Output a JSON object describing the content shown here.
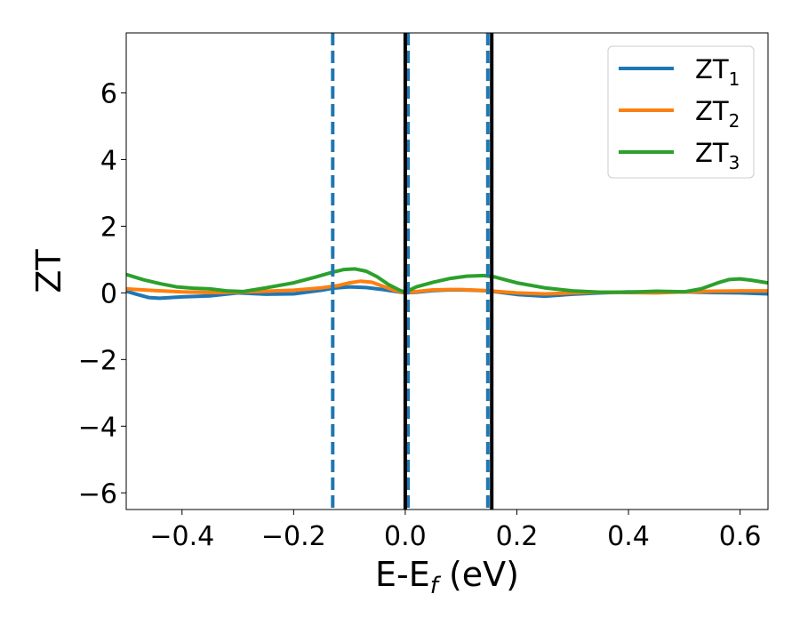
{
  "chart_data": {
    "type": "line",
    "xlabel": "E-E",
    "xlabel_sub": "f",
    "xlabel_unit": " (eV)",
    "ylabel": "ZT",
    "xlim": [
      -0.5,
      0.65
    ],
    "ylim": [
      -6.5,
      7.8
    ],
    "xticks": [
      -0.4,
      -0.2,
      0.0,
      0.2,
      0.4,
      0.6
    ],
    "xtick_labels": [
      "−0.4",
      "−0.2",
      "0.0",
      "0.2",
      "0.4",
      "0.6"
    ],
    "yticks": [
      -6,
      -4,
      -2,
      0,
      2,
      4,
      6
    ],
    "ytick_labels": [
      "−6",
      "−4",
      "−2",
      "0",
      "2",
      "4",
      "6"
    ],
    "grid": false,
    "legend_position": "top-right",
    "series": [
      {
        "name": "ZT",
        "name_sub": "1",
        "color": "#1f77b4",
        "x": [
          -0.5,
          -0.48,
          -0.46,
          -0.44,
          -0.42,
          -0.4,
          -0.35,
          -0.3,
          -0.25,
          -0.2,
          -0.15,
          -0.13,
          -0.1,
          -0.07,
          -0.04,
          -0.02,
          0.0,
          0.02,
          0.05,
          0.08,
          0.1,
          0.12,
          0.15,
          0.2,
          0.25,
          0.3,
          0.35,
          0.4,
          0.45,
          0.5,
          0.55,
          0.6,
          0.65
        ],
        "y": [
          0.05,
          -0.05,
          -0.14,
          -0.16,
          -0.14,
          -0.12,
          -0.09,
          0.0,
          -0.04,
          -0.03,
          0.08,
          0.14,
          0.18,
          0.16,
          0.1,
          0.05,
          0.0,
          0.02,
          0.07,
          0.09,
          0.09,
          0.08,
          0.06,
          -0.05,
          -0.1,
          -0.04,
          0.0,
          0.03,
          0.02,
          0.03,
          0.01,
          0.0,
          -0.03
        ]
      },
      {
        "name": "ZT",
        "name_sub": "2",
        "color": "#ff7f0e",
        "x": [
          -0.5,
          -0.45,
          -0.4,
          -0.35,
          -0.3,
          -0.25,
          -0.2,
          -0.15,
          -0.12,
          -0.1,
          -0.08,
          -0.06,
          -0.04,
          -0.02,
          0.0,
          0.02,
          0.05,
          0.08,
          0.1,
          0.13,
          0.15,
          0.2,
          0.25,
          0.3,
          0.35,
          0.4,
          0.45,
          0.5,
          0.55,
          0.6,
          0.65
        ],
        "y": [
          0.12,
          0.07,
          0.03,
          0.01,
          0.02,
          0.05,
          0.08,
          0.15,
          0.22,
          0.3,
          0.35,
          0.32,
          0.2,
          0.08,
          0.0,
          0.04,
          0.09,
          0.1,
          0.1,
          0.08,
          0.06,
          0.0,
          -0.03,
          0.0,
          0.02,
          0.01,
          0.0,
          0.03,
          0.05,
          0.06,
          0.06
        ]
      },
      {
        "name": "ZT",
        "name_sub": "3",
        "color": "#2ca02c",
        "x": [
          -0.5,
          -0.47,
          -0.44,
          -0.41,
          -0.38,
          -0.35,
          -0.32,
          -0.29,
          -0.25,
          -0.2,
          -0.16,
          -0.13,
          -0.11,
          -0.09,
          -0.07,
          -0.05,
          -0.03,
          -0.01,
          0.0,
          0.02,
          0.05,
          0.08,
          0.11,
          0.14,
          0.16,
          0.2,
          0.25,
          0.3,
          0.35,
          0.4,
          0.45,
          0.5,
          0.53,
          0.56,
          0.58,
          0.6,
          0.62,
          0.65
        ],
        "y": [
          0.55,
          0.4,
          0.28,
          0.18,
          0.14,
          0.12,
          0.06,
          0.04,
          0.15,
          0.3,
          0.48,
          0.62,
          0.7,
          0.72,
          0.65,
          0.48,
          0.25,
          0.08,
          0.02,
          0.18,
          0.32,
          0.43,
          0.5,
          0.52,
          0.48,
          0.3,
          0.15,
          0.06,
          0.02,
          0.02,
          0.05,
          0.03,
          0.12,
          0.3,
          0.4,
          0.42,
          0.38,
          0.3
        ]
      }
    ],
    "vlines": [
      {
        "x": -0.13,
        "color": "#1f77b4",
        "style": "dashed"
      },
      {
        "x": 0.005,
        "color": "#1f77b4",
        "style": "dashed"
      },
      {
        "x": 0.148,
        "color": "#1f77b4",
        "style": "dashed"
      },
      {
        "x": 0.0,
        "color": "#000000",
        "style": "solid"
      },
      {
        "x": 0.155,
        "color": "#000000",
        "style": "solid"
      }
    ]
  }
}
